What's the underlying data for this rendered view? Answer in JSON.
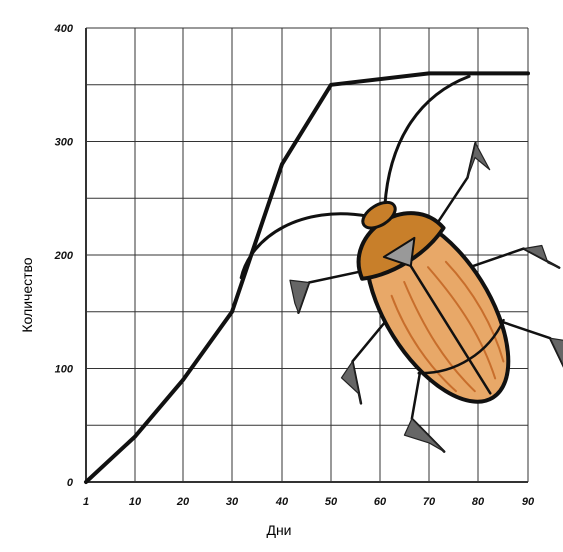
{
  "chart_data": {
    "type": "line",
    "title": "",
    "xlabel": "Дни",
    "ylabel": "Количество",
    "x_ticks": [
      "1",
      "10",
      "20",
      "30",
      "40",
      "50",
      "60",
      "70",
      "80",
      "90"
    ],
    "y_ticks": [
      "0",
      "100",
      "200",
      "300",
      "400"
    ],
    "xlim": [
      1,
      90
    ],
    "ylim": [
      0,
      400
    ],
    "grid": true,
    "series": [
      {
        "x": [
          1,
          10,
          20,
          30,
          40,
          50,
          70,
          90
        ],
        "y": [
          0,
          40,
          90,
          150,
          280,
          350,
          360,
          360
        ],
        "color": "#111111"
      }
    ]
  },
  "colors": {
    "grid": "#333333",
    "line": "#111111",
    "beetle_body": "#e8a868",
    "beetle_head": "#c87f2a",
    "beetle_outline": "#111111"
  },
  "illustration": "cockroach-illustration"
}
